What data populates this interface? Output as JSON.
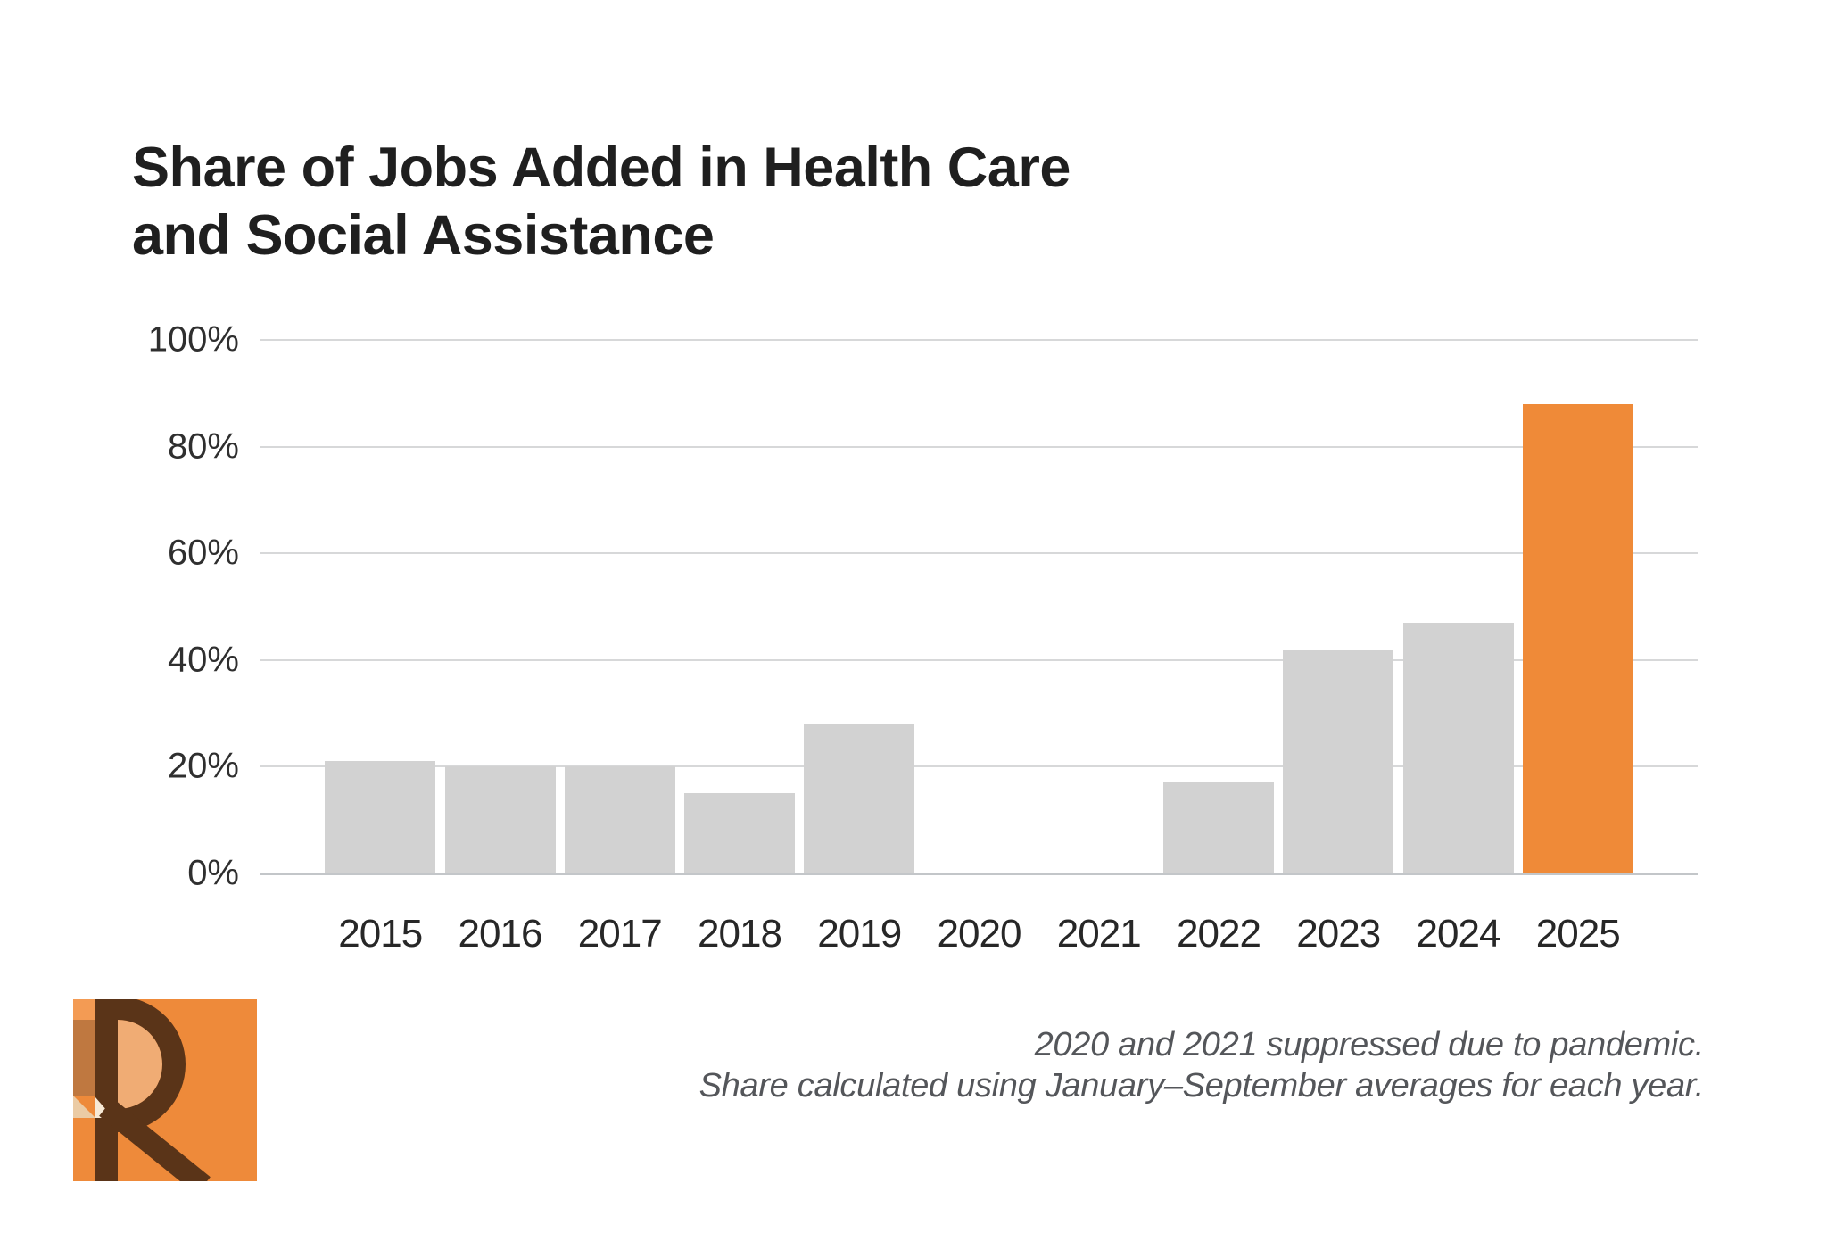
{
  "title": {
    "line1": "Share of Jobs Added in Health Care",
    "line2": "and Social Assistance"
  },
  "footnote": {
    "line1": "2020 and 2021 suppressed due to pandemic.",
    "line2": "Share calculated using January–September averages for each year."
  },
  "logo": {
    "letter": "R",
    "colors": {
      "background": "#EE8A3A",
      "letter": "#5A3418",
      "counter": "#F0AC74",
      "corner_light": "#F39B54",
      "column_dark": "#BF7840",
      "triangle_sand": "#EBCBA4",
      "triangle_cream": "#F7E9D6"
    }
  },
  "colors": {
    "bar_default": "#D2D2D2",
    "bar_highlight": "#EF8A38",
    "gridline": "#D7D8D9",
    "zero_line": "#C3C6C9",
    "title_text": "#1F1F1F",
    "axis_text": "#2F2F2F",
    "footnote_text": "#54565A"
  },
  "chart_data": {
    "type": "bar",
    "title": "Share of Jobs Added in Health Care and Social Assistance",
    "categories": [
      "2015",
      "2016",
      "2017",
      "2018",
      "2019",
      "2020",
      "2021",
      "2022",
      "2023",
      "2024",
      "2025"
    ],
    "values": [
      21,
      20,
      20,
      15,
      28,
      null,
      null,
      17,
      42,
      47,
      88
    ],
    "highlight_category": "2025",
    "missing_categories": [
      "2020",
      "2021"
    ],
    "xlabel": "",
    "ylabel": "",
    "ylim": [
      0,
      100
    ],
    "y_ticks": [
      {
        "value": 0,
        "label": "0%"
      },
      {
        "value": 20,
        "label": "20%"
      },
      {
        "value": 40,
        "label": "40%"
      },
      {
        "value": 60,
        "label": "60%"
      },
      {
        "value": 80,
        "label": "80%"
      },
      {
        "value": 100,
        "label": "100%"
      }
    ],
    "grid": "horizontal",
    "legend": "none"
  }
}
